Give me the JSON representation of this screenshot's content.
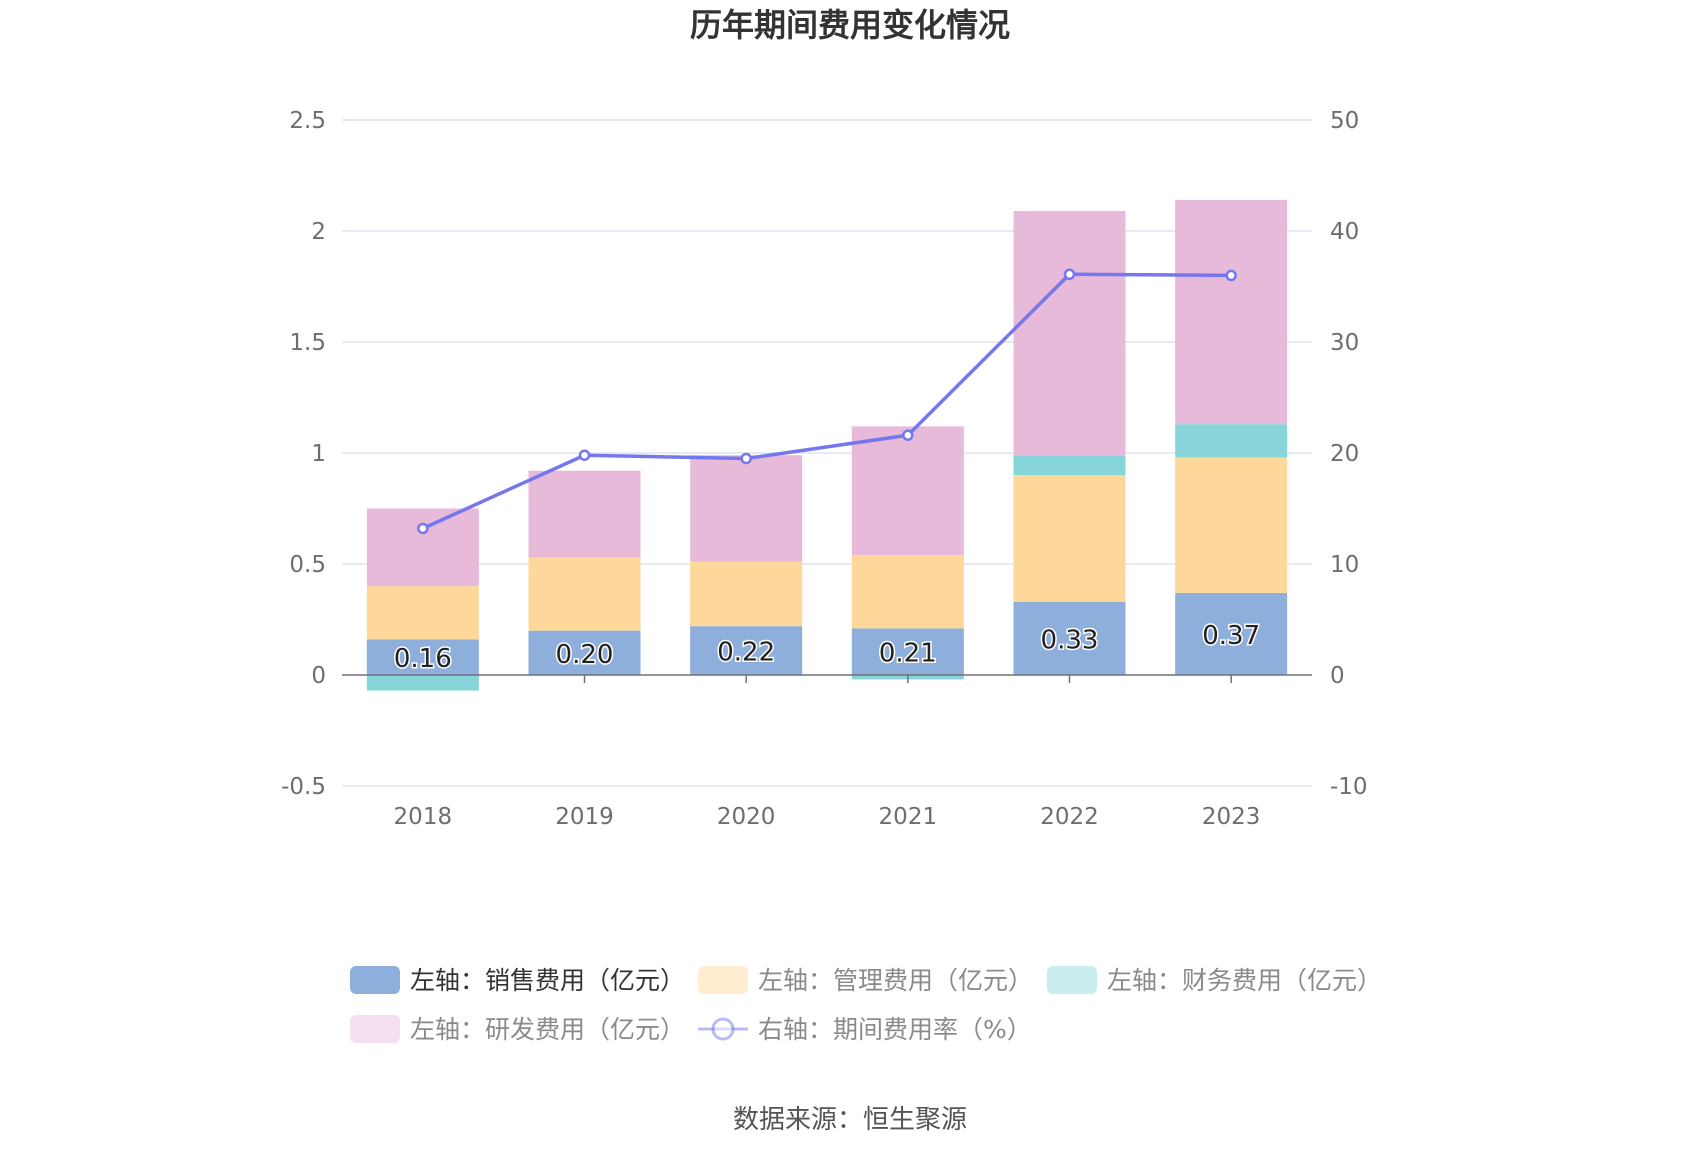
{
  "chart_data": {
    "type": "bar",
    "stacked": true,
    "title": "历年期间费用变化情况",
    "source_label": "数据来源：恒生聚源",
    "categories": [
      "2018",
      "2019",
      "2020",
      "2021",
      "2022",
      "2023"
    ],
    "left_axis": {
      "ylim": [
        -0.5,
        2.5
      ],
      "ticks": [
        "2.5",
        "2",
        "1.5",
        "1",
        "0.5",
        "0",
        "-0.5"
      ],
      "tick_values": [
        2.5,
        2,
        1.5,
        1,
        0.5,
        0,
        -0.5
      ]
    },
    "right_axis": {
      "ylim": [
        -10,
        50
      ],
      "ticks": [
        "50",
        "40",
        "30",
        "20",
        "10",
        "0",
        "-10"
      ],
      "tick_values": [
        50,
        40,
        30,
        20,
        10,
        0,
        -10
      ]
    },
    "grid": true,
    "legend_position": "bottom",
    "series": [
      {
        "name": "左轴：销售费用（亿元）",
        "type": "bar",
        "axis": "left",
        "color": "#8eaedb",
        "values": [
          0.16,
          0.2,
          0.22,
          0.21,
          0.33,
          0.37
        ],
        "data_labels": [
          "0.16",
          "0.20",
          "0.22",
          "0.21",
          "0.33",
          "0.37"
        ]
      },
      {
        "name": "左轴：管理费用（亿元）",
        "type": "bar",
        "axis": "left",
        "color": "#fed89b",
        "values": [
          0.24,
          0.33,
          0.29,
          0.33,
          0.57,
          0.61
        ]
      },
      {
        "name": "左轴：财务费用（亿元）",
        "type": "bar",
        "axis": "left",
        "color": "#88d5d9",
        "values": [
          -0.07,
          0.0,
          0.0,
          -0.02,
          0.09,
          0.15
        ]
      },
      {
        "name": "左轴：研发费用（亿元）",
        "type": "bar",
        "axis": "left",
        "color": "#e7bad9",
        "values": [
          0.35,
          0.39,
          0.48,
          0.58,
          1.1,
          1.01
        ]
      },
      {
        "name": "右轴：期间费用率（%）",
        "type": "line",
        "axis": "right",
        "color": "#7577ee",
        "values": [
          13.2,
          19.8,
          19.5,
          21.6,
          36.1,
          36.0
        ]
      }
    ]
  }
}
